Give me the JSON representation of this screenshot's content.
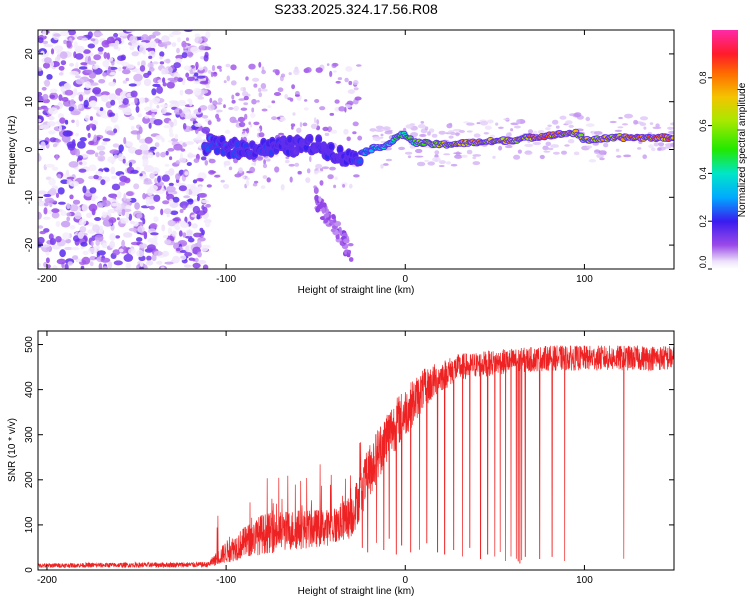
{
  "title": "S233.2025.324.17.56.R08",
  "chart_data": [
    {
      "type": "heatmap",
      "title": "S233.2025.324.17.56.R08",
      "xlabel": "Height of straight line (km)",
      "ylabel": "Frequency (Hz)",
      "xlim": [
        -205,
        150
      ],
      "ylim": [
        -25,
        25
      ],
      "xticks": [
        -200,
        -100,
        0,
        100
      ],
      "yticks": [
        -20,
        -10,
        0,
        10,
        20
      ],
      "xtick_labels": [
        "-200",
        "-100",
        "0",
        "100"
      ],
      "ytick_labels": [
        "-20",
        "-10",
        "0",
        "10",
        "20"
      ],
      "colorbar": {
        "label": "Normalized spectral amplitude",
        "range": [
          0,
          1
        ],
        "ticks": [
          0,
          0.2,
          0.4,
          0.6,
          0.8
        ],
        "tick_labels": [
          "0.0",
          "0.2",
          "0.4",
          "0.6",
          "0.8"
        ]
      },
      "ridge": {
        "description_points": [
          [
            -110,
            1
          ],
          [
            -90,
            0
          ],
          [
            -70,
            0.5
          ],
          [
            -50,
            1
          ],
          [
            -40,
            -0.5
          ],
          [
            -32,
            -2
          ],
          [
            -25,
            -1
          ],
          [
            -20,
            0
          ],
          [
            -10,
            1
          ],
          [
            -3,
            3
          ],
          [
            0,
            3
          ],
          [
            5,
            1.5
          ],
          [
            20,
            1
          ],
          [
            40,
            1.5
          ],
          [
            60,
            2
          ],
          [
            80,
            3
          ],
          [
            95,
            3.5
          ],
          [
            100,
            2
          ],
          [
            120,
            2.5
          ],
          [
            150,
            2.5
          ]
        ],
        "amplitude": [
          [
            -110,
            0.25
          ],
          [
            -60,
            0.2
          ],
          [
            -30,
            0.2
          ],
          [
            -20,
            0.35
          ],
          [
            0,
            0.5
          ],
          [
            20,
            0.7
          ],
          [
            40,
            0.8
          ],
          [
            60,
            0.75
          ],
          [
            80,
            0.85
          ],
          [
            100,
            0.7
          ],
          [
            120,
            0.8
          ],
          [
            150,
            0.85
          ]
        ]
      }
    },
    {
      "type": "line",
      "xlabel": "Height of straight line (km)",
      "ylabel": "SNR (10 * v/v)",
      "xlim": [
        -205,
        150
      ],
      "ylim": [
        0,
        530
      ],
      "xticks": [
        -200,
        -100,
        0,
        100
      ],
      "yticks": [
        0,
        100,
        200,
        300,
        400,
        500
      ],
      "xtick_labels": [
        "-200",
        "-100",
        "0",
        "100"
      ],
      "ytick_labels": [
        "0",
        "100",
        "200",
        "300",
        "400",
        "500"
      ],
      "series": [
        {
          "name": "SNR",
          "color": "#ee2222",
          "envelope_x": [
            -205,
            -110,
            -100,
            -80,
            -60,
            -40,
            -30,
            -20,
            -10,
            0,
            10,
            20,
            30,
            50,
            80,
            100,
            120,
            150
          ],
          "envelope_y": [
            10,
            12,
            40,
            80,
            90,
            95,
            120,
            220,
            300,
            350,
            400,
            430,
            450,
            460,
            470,
            470,
            470,
            470
          ],
          "noise_y": [
            5,
            6,
            25,
            45,
            45,
            40,
            50,
            60,
            60,
            55,
            45,
            35,
            30,
            28,
            28,
            28,
            28,
            28
          ],
          "dropout_x": [
            -24,
            -21,
            -16,
            -12,
            -9,
            -5,
            -2,
            3,
            8,
            12,
            18,
            22,
            27,
            32,
            36,
            42,
            46,
            50,
            53,
            56,
            59,
            62,
            63,
            64,
            65,
            67,
            75,
            82,
            89,
            122
          ],
          "dropout_y": [
            50,
            40,
            60,
            45,
            70,
            35,
            55,
            40,
            45,
            60,
            40,
            35,
            45,
            30,
            50,
            25,
            35,
            30,
            40,
            20,
            30,
            25,
            20,
            15,
            22,
            30,
            25,
            30,
            20,
            25
          ]
        }
      ]
    }
  ]
}
